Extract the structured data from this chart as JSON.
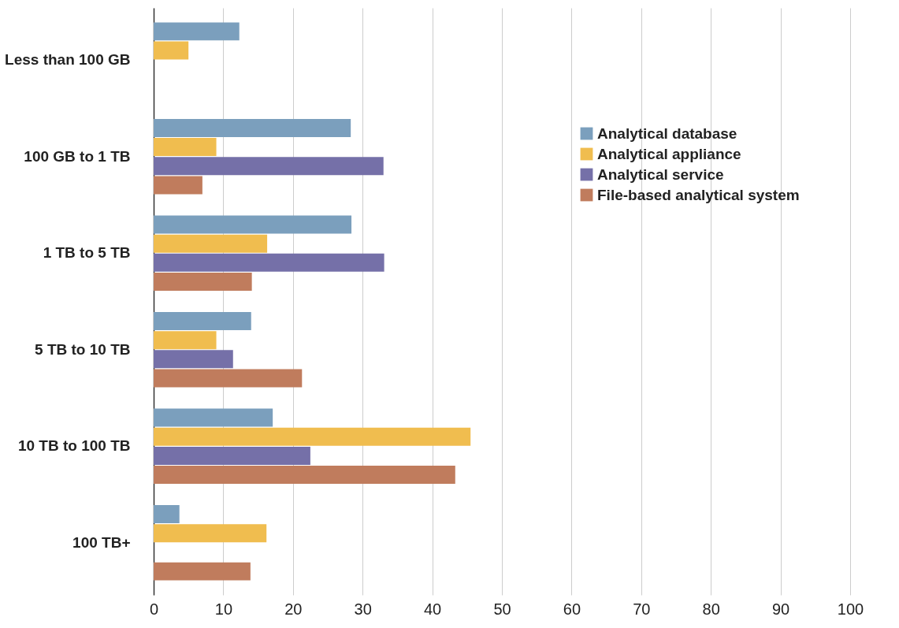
{
  "chart_data": {
    "type": "bar",
    "orientation": "horizontal",
    "categories": [
      "Less than 100 GB",
      "100 GB to 1 TB",
      "1 TB to 5 TB",
      "5 TB to 10 TB",
      "10 TB to 100 TB",
      "100 TB+"
    ],
    "series": [
      {
        "name": "Analytical database",
        "color": "#7b9fbd",
        "values": [
          12.3,
          28.3,
          28.4,
          14.0,
          17.1,
          3.7
        ]
      },
      {
        "name": "Analytical appliance",
        "color": "#f0bd4f",
        "values": [
          5.0,
          9.0,
          16.3,
          9.0,
          45.5,
          16.2
        ]
      },
      {
        "name": "Analytical service",
        "color": "#7570a8",
        "values": [
          null,
          33.0,
          33.1,
          11.4,
          22.5,
          null
        ]
      },
      {
        "name": "File-based analytical system",
        "color": "#c07c5d",
        "values": [
          null,
          7.0,
          14.1,
          21.3,
          43.3,
          13.9
        ]
      }
    ],
    "xlim": [
      0,
      100
    ],
    "xticks": [
      0,
      10,
      20,
      30,
      40,
      50,
      60,
      70,
      80,
      90,
      100
    ],
    "grid": "x",
    "legend": "top right"
  }
}
